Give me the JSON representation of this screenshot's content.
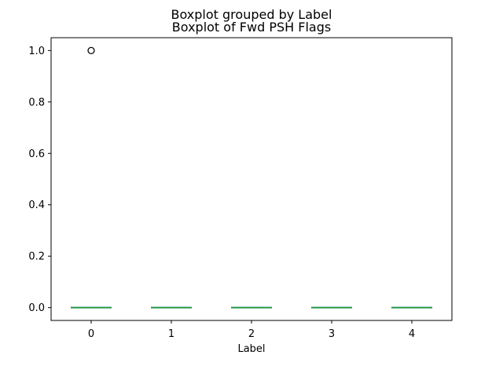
{
  "chart_data": {
    "type": "boxplot",
    "suptitle": "Boxplot grouped by Label",
    "title": "Boxplot of Fwd PSH Flags",
    "xlabel": "Label",
    "ylabel": "",
    "categories": [
      "0",
      "1",
      "2",
      "3",
      "4"
    ],
    "boxes": [
      {
        "category": "0",
        "min": 0.0,
        "q1": 0.0,
        "median": 0.0,
        "q3": 0.0,
        "max": 0.0,
        "outliers": [
          1.0
        ]
      },
      {
        "category": "1",
        "min": 0.0,
        "q1": 0.0,
        "median": 0.0,
        "q3": 0.0,
        "max": 0.0,
        "outliers": []
      },
      {
        "category": "2",
        "min": 0.0,
        "q1": 0.0,
        "median": 0.0,
        "q3": 0.0,
        "max": 0.0,
        "outliers": []
      },
      {
        "category": "3",
        "min": 0.0,
        "q1": 0.0,
        "median": 0.0,
        "q3": 0.0,
        "max": 0.0,
        "outliers": []
      },
      {
        "category": "4",
        "min": 0.0,
        "q1": 0.0,
        "median": 0.0,
        "q3": 0.0,
        "max": 0.0,
        "outliers": []
      }
    ],
    "ylim": [
      -0.05,
      1.05
    ],
    "yticks": [
      "0.0",
      "0.2",
      "0.4",
      "0.6",
      "0.8",
      "1.0"
    ],
    "grid": false,
    "colors": {
      "box": "#1f77b4",
      "median": "#2ca02c",
      "outlier": "#000000"
    }
  }
}
